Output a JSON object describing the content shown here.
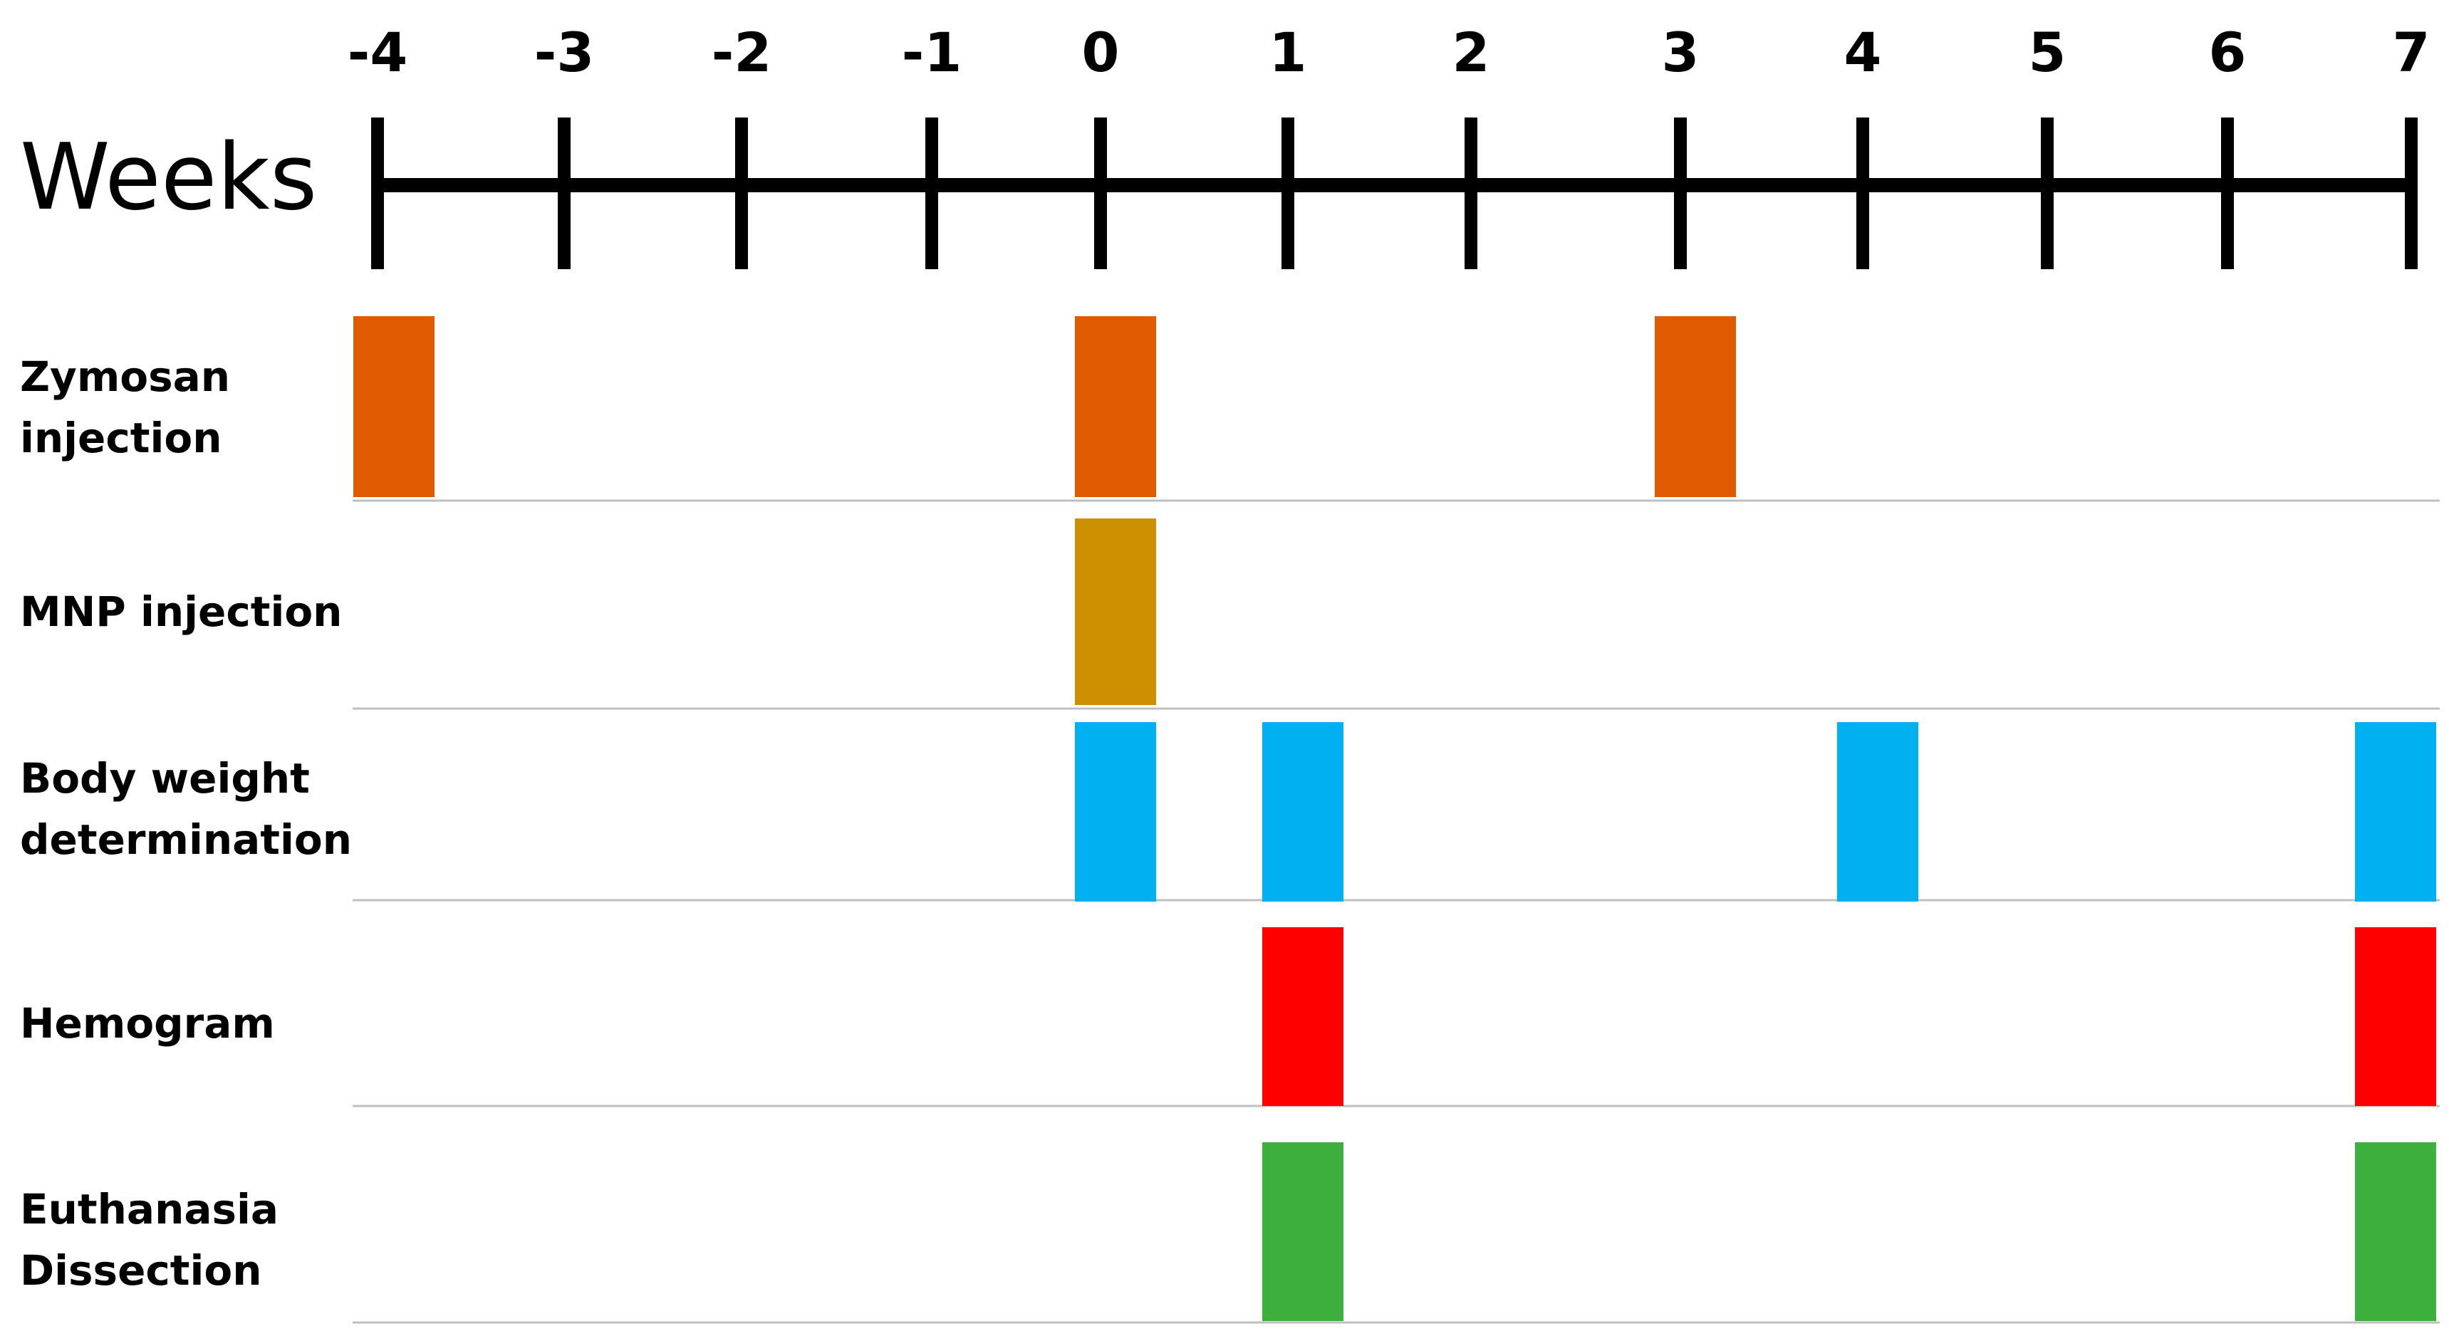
{
  "axis": {
    "title": "Weeks",
    "ticks": [
      -4,
      -3,
      -2,
      -1,
      0,
      1,
      2,
      3,
      4,
      5,
      6,
      7
    ],
    "tick_labels": [
      "-4",
      "-3",
      "-2",
      "-1",
      "0",
      "1",
      "2",
      "3",
      "4",
      "5",
      "6",
      "7"
    ]
  },
  "rows": [
    {
      "id": "zymosan",
      "label_lines": [
        "Zymosan",
        "injection"
      ],
      "color": "#E05A00",
      "weeks": [
        -4,
        0,
        3
      ]
    },
    {
      "id": "mnp",
      "label_lines": [
        "MNP injection"
      ],
      "color": "#CC9000",
      "weeks": [
        0
      ]
    },
    {
      "id": "body-weight",
      "label_lines": [
        "Body weight",
        "determination"
      ],
      "color": "#00B0F0",
      "weeks": [
        0,
        1,
        4,
        7
      ]
    },
    {
      "id": "hemogram",
      "label_lines": [
        "Hemogram"
      ],
      "color": "#FF0000",
      "weeks": [
        1,
        7
      ]
    },
    {
      "id": "euthanasia",
      "label_lines": [
        "Euthanasia",
        "Dissection"
      ],
      "color": "#3CAF3C",
      "weeks": [
        1,
        7
      ]
    }
  ]
}
